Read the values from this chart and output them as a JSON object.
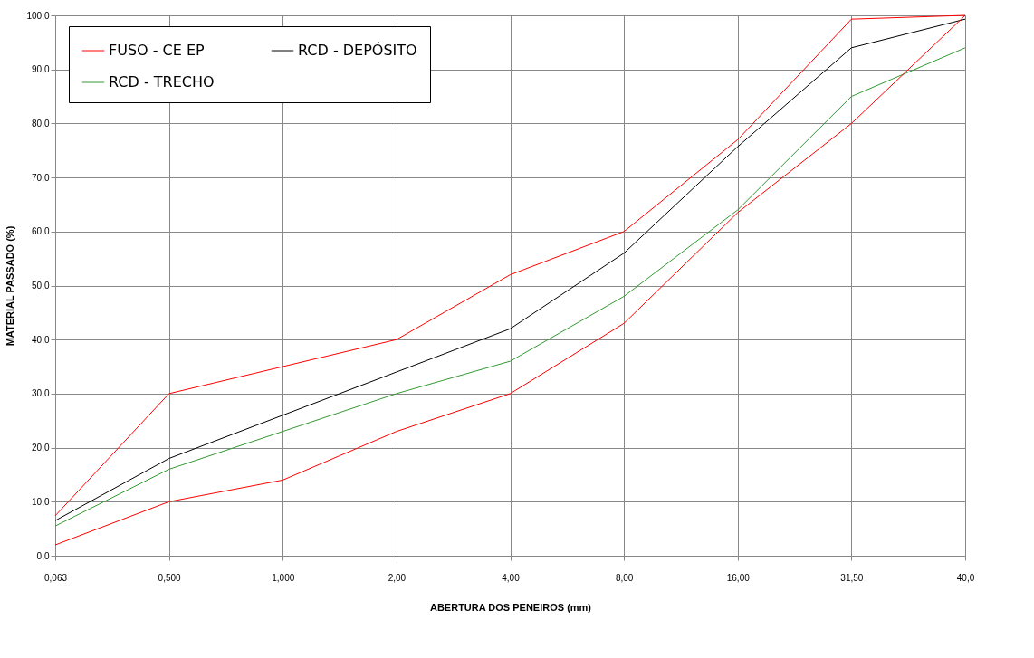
{
  "chart_data": {
    "type": "line",
    "xlabel": "ABERTURA DOS PENEIROS (mm)",
    "ylabel": "MATERIAL PASSADO (%)",
    "categories": [
      "0,063",
      "0,500",
      "1,000",
      "2,00",
      "4,00",
      "8,00",
      "16,00",
      "31,50",
      "40,0"
    ],
    "series": [
      {
        "name": "FUSO - CE EP",
        "color": "#ff0000",
        "values": [
          7.4,
          30,
          35,
          40,
          52,
          60,
          77,
          99.3,
          100
        ]
      },
      {
        "color": "#ff0000",
        "values": [
          2,
          10,
          14,
          23,
          30,
          43,
          63.5,
          80,
          100
        ]
      },
      {
        "name": "RCD - TRECHO",
        "color": "#339933",
        "values": [
          5.5,
          16,
          23,
          30,
          36,
          48,
          64,
          85,
          94
        ]
      },
      {
        "name": "RCD - DEPÓSITO",
        "color": "#000000",
        "values": [
          6.5,
          18,
          26,
          34,
          42,
          56,
          75.7,
          94,
          99.3
        ]
      }
    ],
    "ylim": [
      0,
      100
    ],
    "yticks": [
      {
        "value": 0,
        "label": "0,0"
      },
      {
        "value": 10,
        "label": "10,0"
      },
      {
        "value": 20,
        "label": "20,0"
      },
      {
        "value": 30,
        "label": "30,0"
      },
      {
        "value": 40,
        "label": "40,0"
      },
      {
        "value": 50,
        "label": "50,0"
      },
      {
        "value": 60,
        "label": "60,0"
      },
      {
        "value": 70,
        "label": "70,0"
      },
      {
        "value": 80,
        "label": "80,0"
      },
      {
        "value": 90,
        "label": "90,0"
      },
      {
        "value": 100,
        "label": "100,0"
      }
    ],
    "grid": true,
    "legend": "top left",
    "marker": "none",
    "line_style": "solid"
  }
}
